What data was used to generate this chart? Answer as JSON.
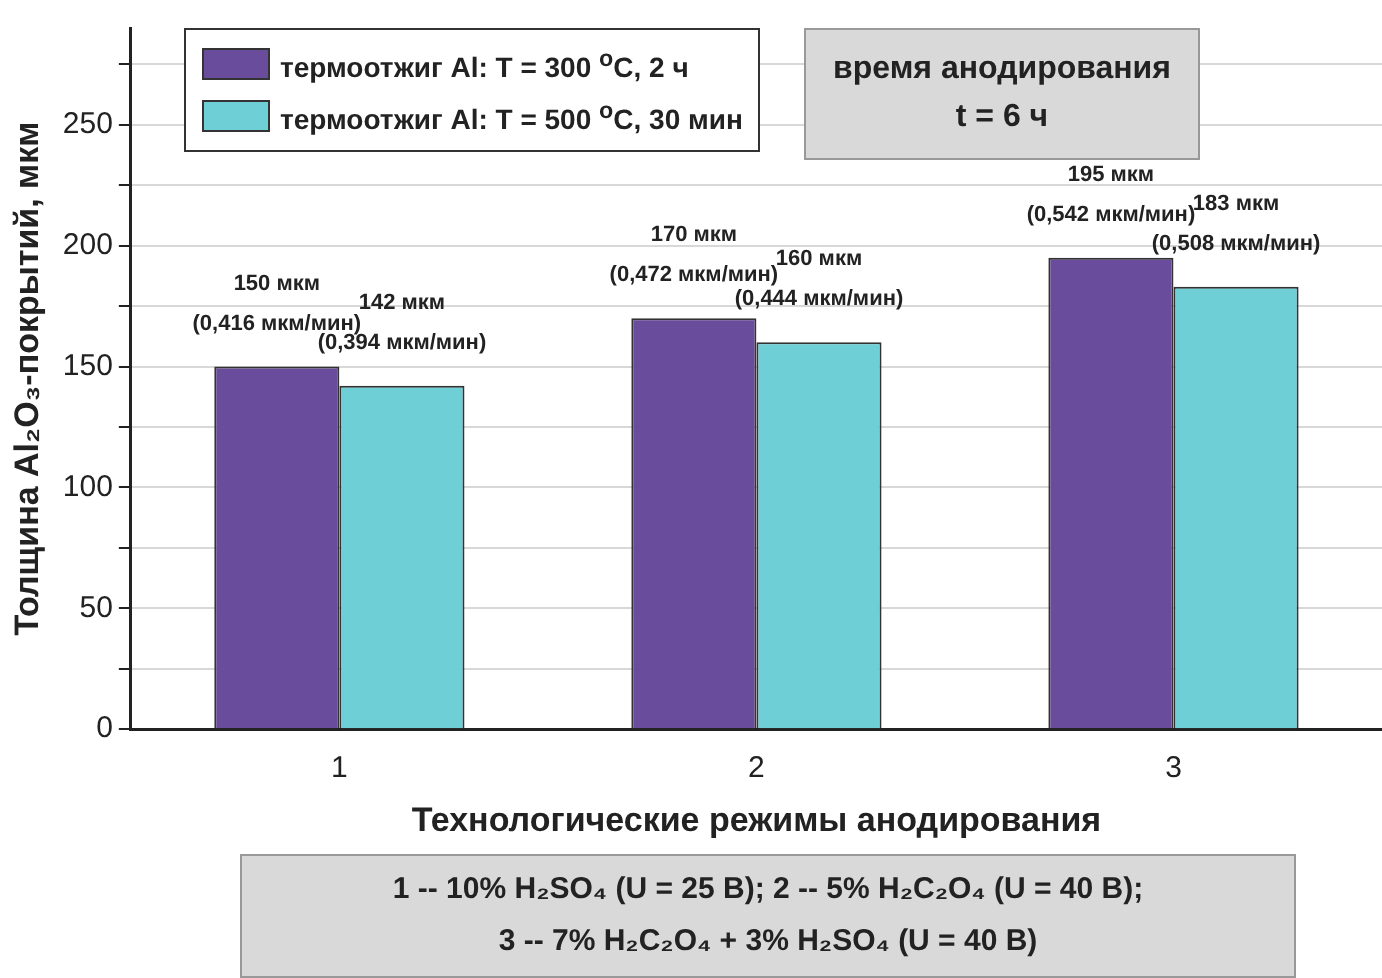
{
  "chart_data": {
    "type": "bar",
    "xlabel": "Технологические режимы анодирования",
    "ylabel": "Толщина Al₂O₃-покрытий, мкм",
    "categories": [
      "1",
      "2",
      "3"
    ],
    "series": [
      {
        "name": "термоотжиг Al: T = 300 $^{o}$C, 2 ч",
        "color": "#6a4c9c",
        "values": [
          150,
          170,
          195
        ],
        "value_labels": [
          "150 мкм\n(0,416 мкм/мин)",
          "170 мкм\n(0,472 мкм/мин)",
          "195 мкм\n(0,542 мкм/мин)"
        ]
      },
      {
        "name": "термоотжиг Al: T = 500 $^{o}$C, 30 мин",
        "color": "#6ecfd6",
        "values": [
          142,
          160,
          183
        ],
        "value_labels": [
          "142 мкм\n(0,394 мкм/мин)",
          "160 мкм\n(0,444 мкм/мин)",
          "183 мкм\n(0,508 мкм/мин)"
        ]
      }
    ],
    "ylim": [
      0,
      290
    ],
    "yticks": [
      0,
      {
        "value": 25,
        "label": null
      },
      50,
      {
        "value": 75,
        "label": null
      },
      100,
      {
        "value": 125,
        "label": null
      },
      150,
      {
        "value": 175,
        "label": null
      },
      200,
      {
        "value": 225,
        "label": null
      },
      250,
      {
        "value": 275,
        "label": null
      }
    ],
    "grid": "y",
    "legend": "top left",
    "annotations": [
      "время анодирования\nt = 6 ч",
      "1 -- 10% H₂SO₄ (U = 25 В); 2 -- 5% H₂C₂O₄ (U = 40 В);\n3 -- 7% H₂C₂O₄ + 3% H₂SO₄ (U = 40 В)"
    ]
  }
}
